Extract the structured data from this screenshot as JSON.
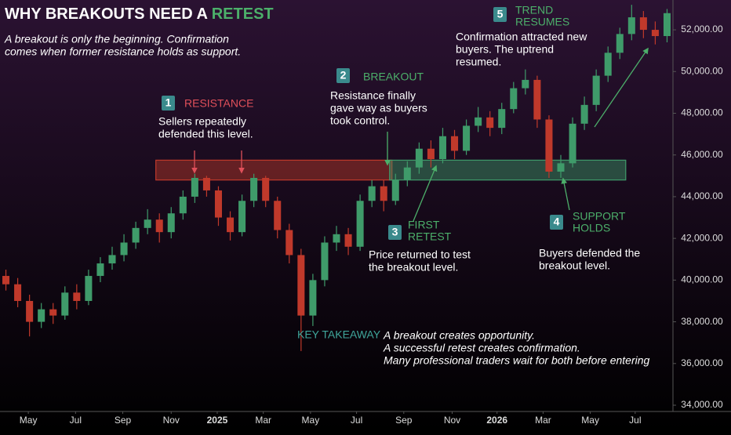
{
  "chart_data": {
    "type": "candlestick",
    "title": "WHY BREAKOUTS NEED A",
    "title_highlight": "RETEST",
    "subtitle": [
      "A breakout is only the beginning. Confirmation",
      "comes when former resistance holds as support."
    ],
    "up_color": "#3f9b6a",
    "down_color": "#c0392b",
    "xlim": [
      0,
      57
    ],
    "xticks": [
      {
        "value": 2.4,
        "label": "May"
      },
      {
        "value": 6.4,
        "label": "Jul"
      },
      {
        "value": 10.4,
        "label": "Sep"
      },
      {
        "value": 14.5,
        "label": "Nov"
      },
      {
        "value": 18.4,
        "label": "2025"
      },
      {
        "value": 22.3,
        "label": "Mar"
      },
      {
        "value": 26.3,
        "label": "May"
      },
      {
        "value": 30.2,
        "label": "Jul"
      },
      {
        "value": 34.2,
        "label": "Sep"
      },
      {
        "value": 38.3,
        "label": "Nov"
      },
      {
        "value": 42.1,
        "label": "2026"
      },
      {
        "value": 46,
        "label": "Mar"
      },
      {
        "value": 50,
        "label": "May"
      },
      {
        "value": 53.8,
        "label": "Jul"
      }
    ],
    "ylim": [
      33700,
      53430
    ],
    "yticks": [
      {
        "value": 34000,
        "label": "34,000.00"
      },
      {
        "value": 36000,
        "label": "36,000.00"
      },
      {
        "value": 38000,
        "label": "38,000.00"
      },
      {
        "value": 40000,
        "label": "40,000.00"
      },
      {
        "value": 42000,
        "label": "42,000.00"
      },
      {
        "value": 44000,
        "label": "44,000.00"
      },
      {
        "value": 46000,
        "label": "46,000.00"
      },
      {
        "value": 48000,
        "label": "48,000.00"
      },
      {
        "value": 50000,
        "label": "50,000.00"
      },
      {
        "value": 52000,
        "label": "52,000.00"
      }
    ],
    "open": [
      40200,
      39800,
      39000,
      38000,
      38600,
      38300,
      39400,
      39000,
      40200,
      40800,
      41200,
      41800,
      42500,
      42900,
      42300,
      43200,
      44000,
      44900,
      44300,
      43000,
      42300,
      43800,
      44900,
      43800,
      42400,
      41200,
      38300,
      40000,
      41800,
      42200,
      41600,
      43800,
      44500,
      43800,
      44800,
      45400,
      46300,
      45800,
      46900,
      46200,
      47400,
      47800,
      47300,
      48200,
      49200,
      49600,
      47700,
      45200,
      45600,
      47500,
      48400,
      49800,
      50900,
      51800,
      52600,
      52000,
      51700
    ],
    "high": [
      40500,
      40100,
      39300,
      38900,
      38900,
      39700,
      39800,
      40500,
      41100,
      41600,
      42200,
      42800,
      43400,
      43200,
      43500,
      44300,
      45100,
      45000,
      44500,
      43300,
      44100,
      45100,
      45000,
      44000,
      42700,
      41500,
      40300,
      42100,
      42600,
      42500,
      44100,
      44800,
      44800,
      45100,
      45700,
      46600,
      46700,
      47300,
      47200,
      47700,
      48300,
      48100,
      48500,
      49500,
      50100,
      49800,
      47900,
      46000,
      47800,
      48800,
      50100,
      51200,
      52100,
      53200,
      52900,
      52400,
      53000
    ],
    "low": [
      39500,
      38700,
      37300,
      37700,
      37900,
      38100,
      38600,
      38800,
      39900,
      40500,
      40900,
      41500,
      42200,
      41800,
      42000,
      42900,
      43700,
      44000,
      42600,
      41900,
      42100,
      43500,
      43500,
      42000,
      40800,
      36600,
      37800,
      39700,
      41400,
      41200,
      41400,
      43500,
      43300,
      43600,
      44500,
      45100,
      45400,
      45600,
      45800,
      46000,
      47100,
      46900,
      47000,
      48000,
      48900,
      47300,
      44900,
      44900,
      45400,
      47200,
      48100,
      49500,
      50600,
      51500,
      51600,
      51300,
      51400
    ],
    "close": [
      39800,
      39000,
      38000,
      38600,
      38300,
      39400,
      39000,
      40200,
      40800,
      41200,
      41800,
      42500,
      42900,
      42300,
      43200,
      44000,
      44900,
      44300,
      43000,
      42300,
      43800,
      44900,
      43800,
      42400,
      41200,
      38300,
      40000,
      41800,
      42200,
      41600,
      43800,
      44500,
      43800,
      44800,
      45400,
      46300,
      45800,
      46900,
      46200,
      47400,
      47800,
      47300,
      48200,
      49200,
      49600,
      47700,
      45200,
      45600,
      47500,
      48400,
      49800,
      50900,
      51800,
      52600,
      52000,
      51700,
      52800
    ],
    "zones": [
      {
        "color": "#c0392b",
        "xrange": [
          13.2,
          33.2
        ],
        "ylim": [
          44800,
          45750
        ]
      },
      {
        "color": "#3f9b6a",
        "xrange": [
          33.0,
          53.0
        ],
        "ylim": [
          44800,
          45750
        ]
      }
    ],
    "annotations": [
      {
        "badge": "1",
        "title": [
          "RESISTANCE"
        ],
        "color": "#e0505a",
        "text": [
          "Sellers repeatedly",
          "defended this level."
        ]
      },
      {
        "badge": "2",
        "title": [
          "BREAKOUT"
        ],
        "color": "#4caf6a",
        "text": [
          "Resistance finally",
          "gave way as buyers",
          "took control."
        ]
      },
      {
        "badge": "3",
        "title": [
          "FIRST",
          "RETEST"
        ],
        "color": "#4caf6a",
        "text": [
          "Price returned to test",
          "the breakout level."
        ]
      },
      {
        "badge": "4",
        "title": [
          "SUPPORT",
          "HOLDS"
        ],
        "color": "#4caf6a",
        "text": [
          "Buyers defended the",
          "breakout level."
        ]
      },
      {
        "badge": "5",
        "title": [
          "TREND",
          "RESUMES"
        ],
        "color": "#4caf6a",
        "text": [
          "Confirmation attracted new",
          "buyers. The uptrend",
          "resumed."
        ]
      }
    ],
    "takeaway_label": "KEY TAKEAWAY",
    "takeaway": [
      "A breakout creates opportunity.",
      "A successful retest creates confirmation.",
      "Many professional traders wait for both before entering"
    ]
  }
}
